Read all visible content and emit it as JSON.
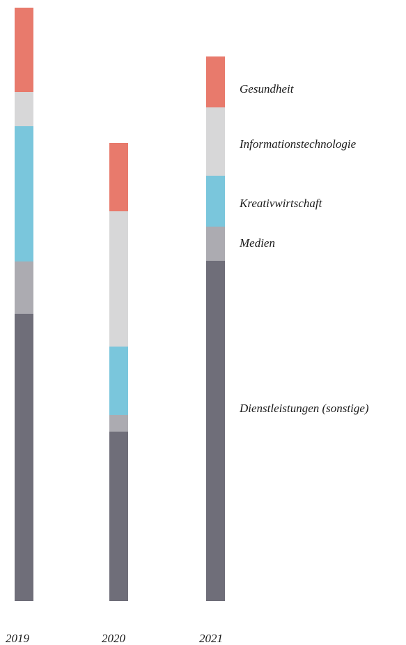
{
  "chart_data": {
    "type": "bar",
    "stacked": true,
    "categories": [
      "2019",
      "2020",
      "2021"
    ],
    "series": [
      {
        "name": "Dienstleistungen (sonstige)",
        "color": "#6f6e79",
        "values": [
          41.2,
          24.3,
          48.8
        ]
      },
      {
        "name": "Medien",
        "color": "#acabb1",
        "values": [
          7.5,
          2.4,
          4.9
        ]
      },
      {
        "name": "Kreativwirtschaft",
        "color": "#7ac6dc",
        "values": [
          19.4,
          9.8,
          7.3
        ]
      },
      {
        "name": "Informationstechnologie",
        "color": "#d7d7d8",
        "values": [
          4.9,
          19.4,
          9.8
        ]
      },
      {
        "name": "Gesundheit",
        "color": "#e87a6c",
        "values": [
          12.1,
          9.8,
          7.3
        ]
      }
    ],
    "legend": "right, aligned to 2021 segments",
    "grid": false,
    "ylim": [
      0,
      85
    ]
  }
}
